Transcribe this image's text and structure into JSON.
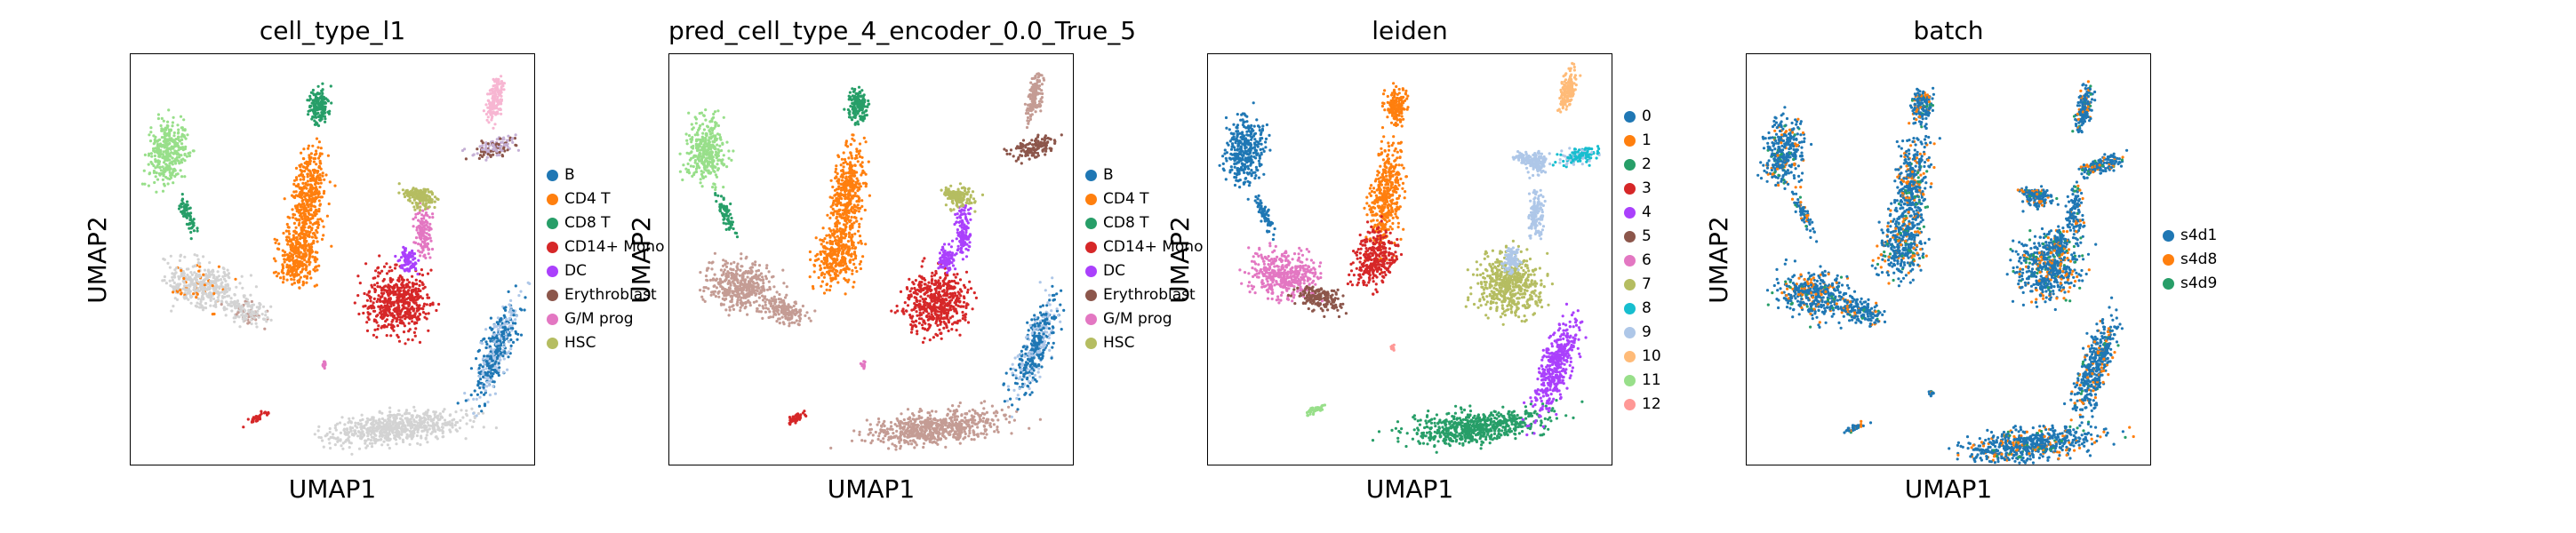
{
  "chart_data": [
    {
      "type": "scatter",
      "title": "cell_type_l1",
      "xlabel": "UMAP1",
      "ylabel": "UMAP2",
      "legend": {
        "placement": "right",
        "entries": [
          {
            "label": "B",
            "color": "#1f77b4"
          },
          {
            "label": "CD4 T",
            "color": "#ff7f0e"
          },
          {
            "label": "CD8 T",
            "color": "#279e68"
          },
          {
            "label": "CD14+ Mono",
            "color": "#d62728"
          },
          {
            "label": "DC",
            "color": "#aa40fc"
          },
          {
            "label": "Erythroblast",
            "color": "#8c564b"
          },
          {
            "label": "G/M prog",
            "color": "#e377c2"
          },
          {
            "label": "HSC",
            "color": "#b5bd61"
          }
        ]
      },
      "ylabel_visible": true
    },
    {
      "type": "scatter",
      "title": "pred_cell_type_4_encoder_0.0_True_5",
      "xlabel": "UMAP1",
      "ylabel": "UMAP2",
      "legend": {
        "placement": "right",
        "entries": [
          {
            "label": "B",
            "color": "#1f77b4"
          },
          {
            "label": "CD4 T",
            "color": "#ff7f0e"
          },
          {
            "label": "CD8 T",
            "color": "#279e68"
          },
          {
            "label": "CD14+ Mono",
            "color": "#d62728"
          },
          {
            "label": "DC",
            "color": "#aa40fc"
          },
          {
            "label": "Erythroblast",
            "color": "#8c564b"
          },
          {
            "label": "G/M prog",
            "color": "#e377c2"
          },
          {
            "label": "HSC",
            "color": "#b5bd61"
          }
        ]
      }
    },
    {
      "type": "scatter",
      "title": "leiden",
      "xlabel": "UMAP1",
      "ylabel": "UMAP2",
      "legend": {
        "placement": "right",
        "entries": [
          {
            "label": "0",
            "color": "#1f77b4"
          },
          {
            "label": "1",
            "color": "#ff7f0e"
          },
          {
            "label": "2",
            "color": "#279e68"
          },
          {
            "label": "3",
            "color": "#d62728"
          },
          {
            "label": "4",
            "color": "#aa40fc"
          },
          {
            "label": "5",
            "color": "#8c564b"
          },
          {
            "label": "6",
            "color": "#e377c2"
          },
          {
            "label": "7",
            "color": "#b5bd61"
          },
          {
            "label": "8",
            "color": "#17becf"
          },
          {
            "label": "9",
            "color": "#aec7e8"
          },
          {
            "label": "10",
            "color": "#ffbb78"
          },
          {
            "label": "11",
            "color": "#98df8a"
          },
          {
            "label": "12",
            "color": "#ff9896"
          }
        ]
      }
    },
    {
      "type": "scatter",
      "title": "batch",
      "xlabel": "UMAP1",
      "ylabel": "UMAP2",
      "legend": {
        "placement": "right",
        "entries": [
          {
            "label": "s4d1",
            "color": "#1f77b4"
          },
          {
            "label": "s4d8",
            "color": "#ff7f0e"
          },
          {
            "label": "s4d9",
            "color": "#279e68"
          }
        ]
      }
    }
  ],
  "colors": {
    "unlabeled": "#d3d3d3",
    "B_light": "#aec7e8",
    "HSC_light": "#dbdb8d",
    "pink": "#f7b6d2",
    "cyan": "#17becf",
    "brown_light": "#c49c94"
  }
}
